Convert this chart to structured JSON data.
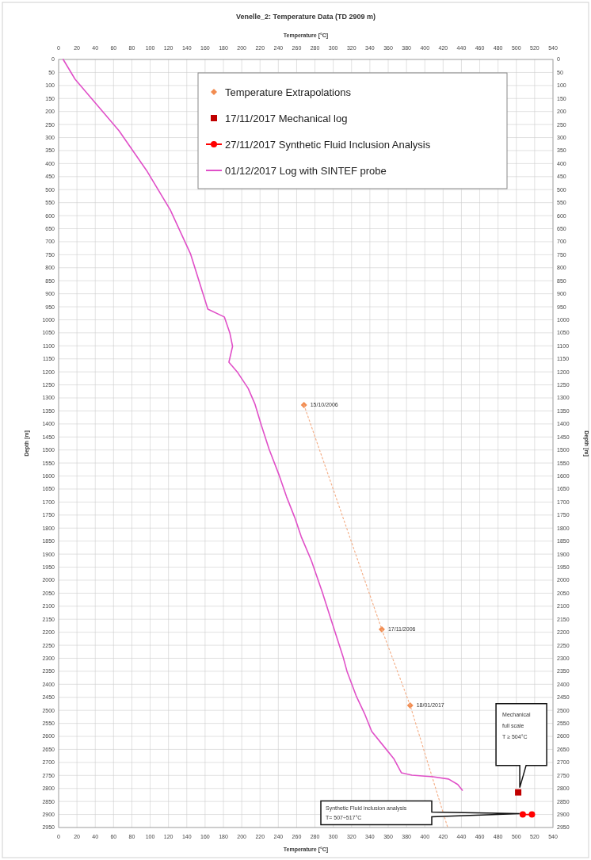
{
  "chart_data": {
    "type": "line",
    "title": "Venelle_2: Temperature Data (TD 2909 m)",
    "xlabel": "Temperature [°C]",
    "x2label": "Temperature [°C]",
    "ylabel": "Depth [m]",
    "y2label": "Depth [m]",
    "xlim": [
      0,
      540
    ],
    "x2lim": [
      0,
      540
    ],
    "ylim": [
      2950,
      0
    ],
    "y2lim": [
      2950,
      0
    ],
    "xticks": [
      0,
      20,
      40,
      60,
      80,
      100,
      120,
      140,
      160,
      180,
      200,
      220,
      240,
      260,
      280,
      300,
      320,
      340,
      360,
      380,
      400,
      420,
      440,
      460,
      480,
      500,
      520,
      540
    ],
    "x2ticks": [
      0,
      20,
      40,
      60,
      80,
      100,
      120,
      140,
      160,
      180,
      200,
      220,
      240,
      260,
      280,
      300,
      320,
      340,
      360,
      380,
      400,
      420,
      440,
      460,
      480,
      500,
      520,
      540
    ],
    "yticks": [
      0,
      50,
      100,
      150,
      200,
      250,
      300,
      350,
      400,
      450,
      500,
      550,
      600,
      650,
      700,
      750,
      800,
      850,
      900,
      950,
      1000,
      1050,
      1100,
      1150,
      1200,
      1250,
      1300,
      1350,
      1400,
      1450,
      1500,
      1550,
      1600,
      1650,
      1700,
      1750,
      1800,
      1850,
      1900,
      1950,
      2000,
      2050,
      2100,
      2150,
      2200,
      2250,
      2300,
      2350,
      2400,
      2450,
      2500,
      2550,
      2600,
      2650,
      2700,
      2750,
      2800,
      2850,
      2900,
      2950
    ],
    "y2ticks": [
      0,
      50,
      100,
      150,
      200,
      250,
      300,
      350,
      400,
      450,
      500,
      550,
      600,
      650,
      700,
      750,
      800,
      850,
      900,
      950,
      1000,
      1050,
      1100,
      1150,
      1200,
      1250,
      1300,
      1350,
      1400,
      1450,
      1500,
      1550,
      1600,
      1650,
      1700,
      1750,
      1800,
      1850,
      1900,
      1950,
      2000,
      2050,
      2100,
      2150,
      2200,
      2250,
      2300,
      2350,
      2400,
      2450,
      2500,
      2550,
      2600,
      2650,
      2700,
      2750,
      2800,
      2850,
      2900,
      2950
    ],
    "grid": true,
    "legend": "top right",
    "series": [
      {
        "name": "Temperature Extrapolations",
        "type": "scatter",
        "marker": "diamond",
        "color": "#f28c50",
        "x": [
          268,
          353,
          384
        ],
        "values": [
          1327,
          2189,
          2481
        ]
      },
      {
        "type": "line",
        "marker": "none",
        "line_style": "dotted",
        "color": "#f4b08a",
        "x": [
          268,
          353,
          384,
          425
        ],
        "values": [
          1327,
          2189,
          2481,
          2950
        ]
      },
      {
        "name": "17/11/2017 Mechanical log",
        "type": "scatter",
        "marker": "square",
        "color": "#c00000",
        "x": [
          502
        ],
        "values": [
          2815
        ]
      },
      {
        "name": "27/11/2017 Synthetic Fluid Inclusion Analysis",
        "marker": "circle",
        "line_style": "solid",
        "color": "#ff0000",
        "x": [
          507,
          517
        ],
        "values": [
          2900,
          2900
        ]
      },
      {
        "name": "01/12/2017 Log with SINTEF probe",
        "marker": "none",
        "line_style": "solid",
        "color": "#e050c8",
        "x": [
          5,
          18,
          40,
          66,
          96,
          122,
          144,
          163,
          181,
          187,
          190,
          186,
          195.5,
          207,
          214.5,
          221.5,
          230,
          241,
          249,
          258,
          265,
          276,
          288,
          299,
          311,
          315,
          325,
          334,
          342,
          354,
          366,
          374.5,
          386,
          409,
          426,
          436,
          441
        ],
        "values": [
          0,
          76,
          167,
          274,
          426,
          578,
          746,
          959,
          989,
          1050,
          1102,
          1163,
          1202,
          1263,
          1324,
          1406,
          1498,
          1598,
          1680,
          1760,
          1833,
          1924,
          2046,
          2167,
          2298,
          2350,
          2444,
          2511,
          2581,
          2633,
          2685,
          2740,
          2749,
          2755,
          2764,
          2785,
          2807
        ]
      }
    ],
    "annotations": [
      {
        "text": "15/10/2006",
        "x": 268,
        "y": 1327
      },
      {
        "text": "17/11/2006",
        "x": 353,
        "y": 2189
      },
      {
        "text": "18/01/2017",
        "x": 384,
        "y": 2481
      },
      "Mechanical full scale T ≥ 504°C",
      "Synthetic Fluid inclusion analysis T= 507÷517°C"
    ]
  }
}
